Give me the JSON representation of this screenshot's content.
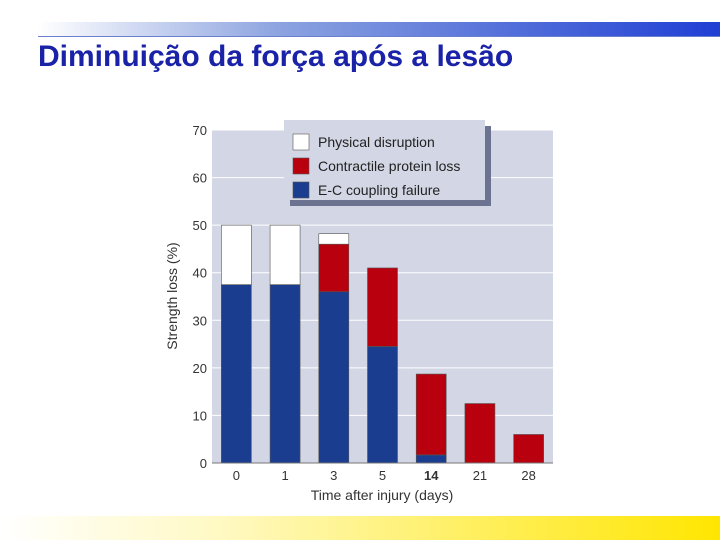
{
  "slide": {
    "title": "Diminuição da força após a lesão"
  },
  "chart_data": {
    "type": "bar",
    "stacked": true,
    "categories": [
      "0",
      "1",
      "3",
      "5",
      "14",
      "21",
      "28"
    ],
    "bold_categories": [
      "14"
    ],
    "series": [
      {
        "name": "E-C coupling failure",
        "color": "#1a3d8f",
        "values": [
          37.5,
          37.5,
          36,
          24.5,
          1.7,
          0,
          0
        ]
      },
      {
        "name": "Contractile protein loss",
        "color": "#b8000f",
        "values": [
          0,
          0,
          10,
          16.5,
          17,
          12.5,
          6
        ]
      },
      {
        "name": "Physical disruption",
        "color": "#ffffff",
        "values": [
          12.5,
          12.5,
          2.2,
          0,
          0,
          0,
          0
        ]
      }
    ],
    "xlabel": "Time after injury (days)",
    "ylabel": "Strength loss  (%)",
    "ylim": [
      0,
      70
    ],
    "yticks": [
      0,
      10,
      20,
      30,
      40,
      50,
      60,
      70
    ],
    "grid": true,
    "plot_background": "#d3d6e4",
    "legend_position": "top-center"
  }
}
